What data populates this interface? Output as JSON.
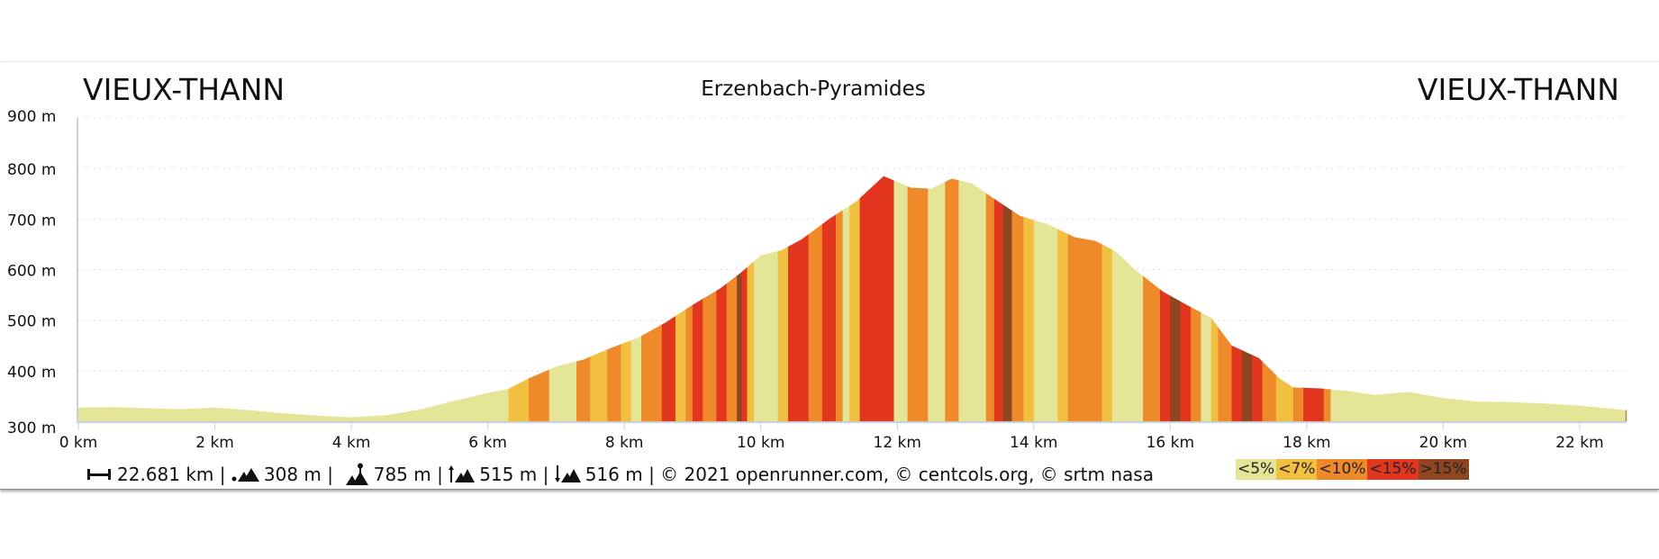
{
  "header": {
    "start": "VIEUX-THANN",
    "name": "Erzenbach-Pyramides",
    "end": "VIEUX-THANN"
  },
  "stats": {
    "distance": "22.681 km",
    "min_alt": "308 m",
    "max_alt": "785 m",
    "ascent": "515 m",
    "descent": "516 m",
    "sep": "|",
    "copyright": "© 2021 openrunner.com, © centcols.org, © srtm nasa",
    "icons": [
      "distance-icon",
      "min-altitude-icon",
      "max-altitude-icon",
      "ascent-icon",
      "descent-icon"
    ]
  },
  "legend": [
    {
      "label": "<5%",
      "color": "#e5e597"
    },
    {
      "label": "<7%",
      "color": "#f2c040"
    },
    {
      "label": "<10%",
      "color": "#ef8a2a"
    },
    {
      "label": "<15%",
      "color": "#e3361f"
    },
    {
      "label": ">15%",
      "color": "#8f4520"
    }
  ],
  "chart_data": {
    "type": "area",
    "title": "Erzenbach-Pyramides",
    "xlabel": "km",
    "ylabel": "m",
    "xlim": [
      0,
      22.681
    ],
    "ylim": [
      300,
      900
    ],
    "x_ticks": [
      "0 km",
      "2 km",
      "4 km",
      "6 km",
      "8 km",
      "10 km",
      "12 km",
      "14 km",
      "16 km",
      "18 km",
      "20 km",
      "22 km"
    ],
    "y_ticks": [
      "300 m",
      "400 m",
      "500 m",
      "600 m",
      "700 m",
      "800 m",
      "900 m"
    ],
    "profile": [
      [
        0,
        327
      ],
      [
        0.5,
        328
      ],
      [
        1.0,
        326
      ],
      [
        1.5,
        324
      ],
      [
        2.0,
        327
      ],
      [
        2.5,
        322
      ],
      [
        3.0,
        316
      ],
      [
        3.5,
        311
      ],
      [
        4.0,
        308
      ],
      [
        4.5,
        312
      ],
      [
        5.0,
        323
      ],
      [
        5.5,
        340
      ],
      [
        6.0,
        356
      ],
      [
        6.3,
        364
      ],
      [
        6.6,
        385
      ],
      [
        7.0,
        408
      ],
      [
        7.4,
        422
      ],
      [
        7.8,
        445
      ],
      [
        8.2,
        465
      ],
      [
        8.6,
        495
      ],
      [
        9.0,
        530
      ],
      [
        9.4,
        562
      ],
      [
        9.7,
        593
      ],
      [
        10.0,
        628
      ],
      [
        10.3,
        638
      ],
      [
        10.6,
        660
      ],
      [
        11.0,
        700
      ],
      [
        11.4,
        735
      ],
      [
        11.8,
        785
      ],
      [
        12.2,
        762
      ],
      [
        12.5,
        760
      ],
      [
        12.8,
        780
      ],
      [
        13.1,
        770
      ],
      [
        13.4,
        742
      ],
      [
        13.8,
        706
      ],
      [
        14.2,
        690
      ],
      [
        14.6,
        664
      ],
      [
        14.9,
        657
      ],
      [
        15.2,
        636
      ],
      [
        15.5,
        598
      ],
      [
        15.9,
        556
      ],
      [
        16.3,
        526
      ],
      [
        16.6,
        505
      ],
      [
        16.9,
        450
      ],
      [
        17.3,
        425
      ],
      [
        17.6,
        385
      ],
      [
        17.8,
        367
      ],
      [
        18.2,
        365
      ],
      [
        18.6,
        360
      ],
      [
        19.0,
        352
      ],
      [
        19.5,
        358
      ],
      [
        20.0,
        346
      ],
      [
        20.5,
        339
      ],
      [
        21.0,
        338
      ],
      [
        21.5,
        335
      ],
      [
        22.0,
        331
      ],
      [
        22.681,
        322
      ]
    ],
    "slope_segments": [
      [
        0,
        6.3,
        0
      ],
      [
        6.3,
        6.6,
        1
      ],
      [
        6.6,
        6.9,
        2
      ],
      [
        6.9,
        7.3,
        0
      ],
      [
        7.3,
        7.5,
        2
      ],
      [
        7.5,
        7.75,
        1
      ],
      [
        7.75,
        7.95,
        2
      ],
      [
        7.95,
        8.1,
        1
      ],
      [
        8.1,
        8.25,
        0
      ],
      [
        8.25,
        8.55,
        2
      ],
      [
        8.55,
        8.75,
        3
      ],
      [
        8.75,
        8.9,
        1
      ],
      [
        8.9,
        9.0,
        2
      ],
      [
        9.0,
        9.15,
        3
      ],
      [
        9.15,
        9.35,
        2
      ],
      [
        9.35,
        9.5,
        3
      ],
      [
        9.5,
        9.65,
        2
      ],
      [
        9.65,
        9.72,
        4
      ],
      [
        9.72,
        9.8,
        3
      ],
      [
        9.8,
        9.9,
        1
      ],
      [
        9.9,
        10.25,
        0
      ],
      [
        10.25,
        10.4,
        1
      ],
      [
        10.4,
        10.7,
        3
      ],
      [
        10.7,
        10.9,
        2
      ],
      [
        10.9,
        11.1,
        3
      ],
      [
        11.1,
        11.2,
        2
      ],
      [
        11.2,
        11.3,
        0
      ],
      [
        11.3,
        11.45,
        1
      ],
      [
        11.45,
        11.95,
        3
      ],
      [
        11.95,
        12.15,
        0
      ],
      [
        12.15,
        12.45,
        2
      ],
      [
        12.45,
        12.7,
        0
      ],
      [
        12.7,
        12.9,
        2
      ],
      [
        12.9,
        13.3,
        0
      ],
      [
        13.3,
        13.42,
        2
      ],
      [
        13.42,
        13.55,
        3
      ],
      [
        13.55,
        13.68,
        4
      ],
      [
        13.68,
        13.85,
        2
      ],
      [
        13.85,
        14.0,
        1
      ],
      [
        14.0,
        14.35,
        0
      ],
      [
        14.35,
        14.5,
        1
      ],
      [
        14.5,
        15.0,
        2
      ],
      [
        15.0,
        15.15,
        1
      ],
      [
        15.15,
        15.6,
        0
      ],
      [
        15.6,
        15.85,
        2
      ],
      [
        15.85,
        16.0,
        3
      ],
      [
        16.0,
        16.15,
        4
      ],
      [
        16.15,
        16.3,
        3
      ],
      [
        16.3,
        16.45,
        2
      ],
      [
        16.45,
        16.6,
        0
      ],
      [
        16.6,
        16.7,
        1
      ],
      [
        16.7,
        16.9,
        2
      ],
      [
        16.9,
        17.05,
        3
      ],
      [
        17.05,
        17.2,
        4
      ],
      [
        17.2,
        17.35,
        3
      ],
      [
        17.35,
        17.55,
        2
      ],
      [
        17.55,
        17.8,
        1
      ],
      [
        17.8,
        17.95,
        2
      ],
      [
        17.95,
        18.25,
        3
      ],
      [
        18.25,
        18.35,
        2
      ],
      [
        18.35,
        22.681,
        0
      ]
    ]
  }
}
